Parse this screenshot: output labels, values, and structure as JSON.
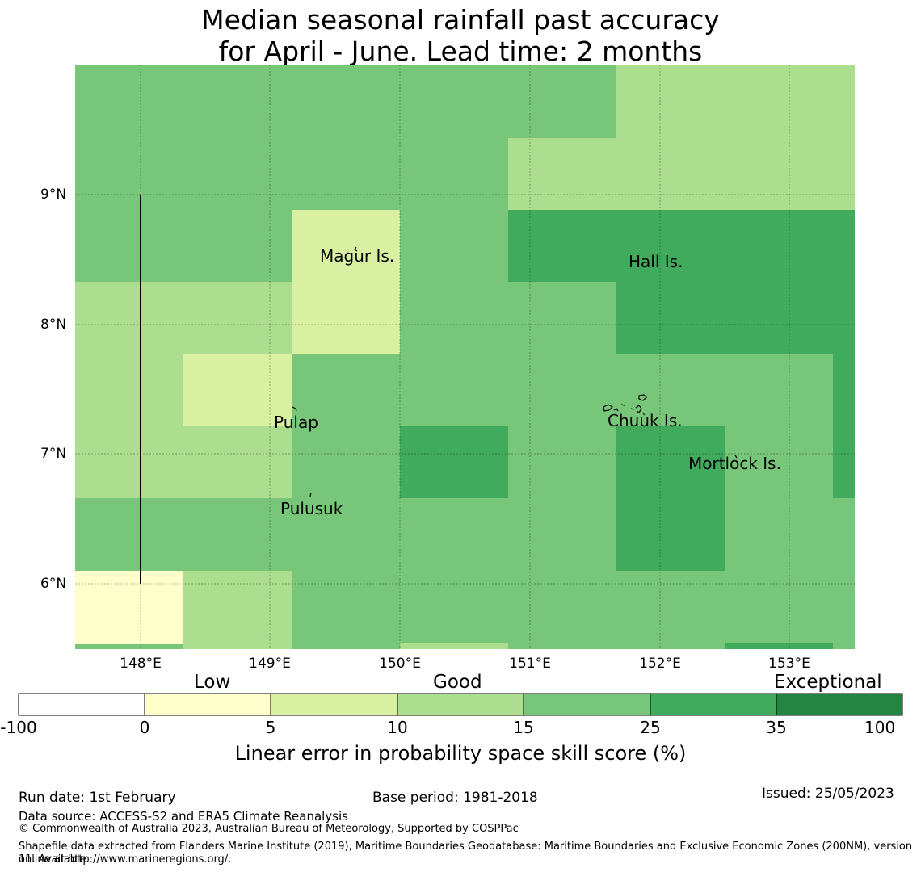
{
  "title": {
    "line1": "Median seasonal rainfall past accuracy",
    "line2": "for April - June. Lead time: 2 months"
  },
  "map": {
    "lat_labels": [
      "9°N",
      "8°N",
      "7°N",
      "6°N"
    ],
    "lon_labels": [
      "148°E",
      "149°E",
      "150°E",
      "151°E",
      "152°E",
      "153°E"
    ],
    "places": [
      "Magur Is.",
      "Hall Is.",
      "Pulap",
      "Chuuk Is.",
      "Mortlock Is.",
      "Pulusuk"
    ]
  },
  "legend": {
    "categories": [
      "Low",
      "Good",
      "Exceptional"
    ],
    "ticks": [
      "-100",
      "0",
      "5",
      "10",
      "15",
      "25",
      "35",
      "100"
    ],
    "colors": [
      "#ffffff",
      "#ffffcc",
      "#d9f0a3",
      "#addd8e",
      "#78c679",
      "#41ab5d",
      "#238443"
    ],
    "title": "Linear error in probability space skill score (%)"
  },
  "footer": {
    "run_date": "Run date: 1st February",
    "base_period": "Base period: 1981-2018",
    "issued": "Issued: 25/05/2023",
    "data_source": "Data source: ACCESS-S2 and ERA5 Climate Reanalysis",
    "copyright": "© Commonwealth of Australia 2023, Australian Bureau of Meteorology, Supported by COSPPac",
    "shapefile_line1": "Shapefile data extracted from Flanders Marine Institute (2019), Maritime Boundaries Geodatabase: Maritime Boundaries and Exclusive Economic Zones (200NM), version 11. Available",
    "shapefile_line2": "online at http://www.marineregions.org/."
  }
}
